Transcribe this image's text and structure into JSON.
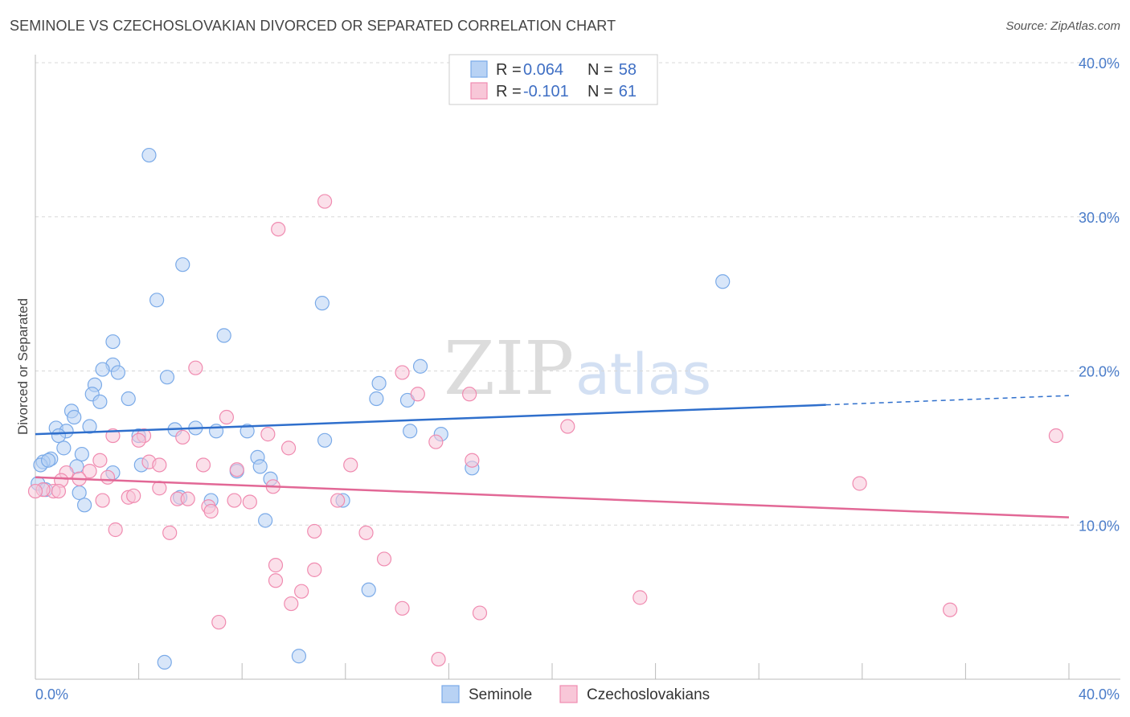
{
  "title": "SEMINOLE VS CZECHOSLOVAKIAN DIVORCED OR SEPARATED CORRELATION CHART",
  "source": "Source: ZipAtlas.com",
  "watermark": {
    "zip": "ZIP",
    "atlas": "atlas"
  },
  "chart_data": {
    "type": "scatter",
    "ylabel": "Divorced or Separated",
    "xlim": [
      0,
      40
    ],
    "ylim": [
      0,
      40
    ],
    "x_tick_labels": [
      {
        "value": 0,
        "label": "0.0%"
      },
      {
        "value": 40,
        "label": "40.0%"
      }
    ],
    "y_tick_labels": [
      {
        "value": 10,
        "label": "10.0%"
      },
      {
        "value": 20,
        "label": "20.0%"
      },
      {
        "value": 30,
        "label": "30.0%"
      },
      {
        "value": 40,
        "label": "40.0%"
      }
    ],
    "grid": "horizontal-dashed",
    "legend": {
      "placement": "top-center",
      "entries": [
        {
          "r_label": "R =",
          "r": "0.064",
          "n_label": "N =",
          "n": "58"
        },
        {
          "r_label": "R =",
          "r": "-0.101",
          "n_label": "N =",
          "n": "61"
        }
      ]
    },
    "series": [
      {
        "name": "Seminole",
        "color": "#7aaae8",
        "fill": "#b8d2f4",
        "line_color": "#2f6fcc",
        "trend": {
          "x": [
            0,
            30.6
          ],
          "y": [
            15.9,
            17.8
          ],
          "dashed_to": [
            40,
            18.4
          ]
        },
        "points": [
          [
            4.4,
            34.0
          ],
          [
            5.7,
            26.9
          ],
          [
            4.7,
            24.6
          ],
          [
            11.1,
            24.4
          ],
          [
            26.6,
            25.8
          ],
          [
            7.3,
            22.3
          ],
          [
            3.0,
            21.9
          ],
          [
            3.0,
            20.4
          ],
          [
            2.6,
            20.1
          ],
          [
            3.2,
            19.9
          ],
          [
            5.1,
            19.6
          ],
          [
            13.3,
            19.2
          ],
          [
            14.9,
            20.3
          ],
          [
            2.3,
            19.1
          ],
          [
            2.2,
            18.5
          ],
          [
            2.5,
            18.0
          ],
          [
            3.6,
            18.2
          ],
          [
            13.2,
            18.2
          ],
          [
            14.4,
            18.1
          ],
          [
            1.4,
            17.4
          ],
          [
            1.5,
            17.0
          ],
          [
            2.1,
            16.4
          ],
          [
            0.8,
            16.3
          ],
          [
            1.2,
            16.1
          ],
          [
            0.9,
            15.8
          ],
          [
            4.0,
            15.8
          ],
          [
            5.4,
            16.2
          ],
          [
            6.2,
            16.3
          ],
          [
            7.0,
            16.1
          ],
          [
            8.2,
            16.1
          ],
          [
            14.5,
            16.1
          ],
          [
            15.7,
            15.9
          ],
          [
            11.2,
            15.5
          ],
          [
            1.1,
            15.0
          ],
          [
            1.8,
            14.6
          ],
          [
            0.6,
            14.3
          ],
          [
            0.3,
            14.1
          ],
          [
            0.2,
            13.9
          ],
          [
            0.5,
            14.2
          ],
          [
            8.6,
            14.4
          ],
          [
            1.6,
            13.8
          ],
          [
            4.1,
            13.9
          ],
          [
            7.8,
            13.5
          ],
          [
            8.7,
            13.8
          ],
          [
            3.0,
            13.4
          ],
          [
            16.9,
            13.7
          ],
          [
            9.1,
            13.0
          ],
          [
            1.7,
            12.1
          ],
          [
            5.6,
            11.8
          ],
          [
            6.8,
            11.6
          ],
          [
            11.9,
            11.6
          ],
          [
            1.9,
            11.3
          ],
          [
            8.9,
            10.3
          ],
          [
            12.9,
            5.8
          ],
          [
            5.0,
            1.1
          ],
          [
            10.2,
            1.5
          ],
          [
            0.1,
            12.7
          ],
          [
            0.4,
            12.3
          ]
        ]
      },
      {
        "name": "Czechoslovakians",
        "color": "#f08bb0",
        "fill": "#f8c7d8",
        "line_color": "#e26896",
        "trend": {
          "x": [
            0,
            40
          ],
          "y": [
            13.1,
            10.5
          ]
        },
        "points": [
          [
            11.2,
            31.0
          ],
          [
            9.4,
            29.2
          ],
          [
            6.2,
            20.2
          ],
          [
            14.2,
            19.9
          ],
          [
            14.8,
            18.5
          ],
          [
            16.8,
            18.5
          ],
          [
            7.4,
            17.0
          ],
          [
            20.6,
            16.4
          ],
          [
            39.5,
            15.8
          ],
          [
            3.0,
            15.8
          ],
          [
            5.7,
            15.7
          ],
          [
            4.2,
            15.8
          ],
          [
            9.0,
            15.9
          ],
          [
            4.0,
            15.5
          ],
          [
            15.5,
            15.4
          ],
          [
            9.8,
            15.0
          ],
          [
            2.5,
            14.2
          ],
          [
            4.4,
            14.1
          ],
          [
            4.8,
            13.9
          ],
          [
            6.5,
            13.9
          ],
          [
            12.2,
            13.9
          ],
          [
            16.9,
            14.2
          ],
          [
            7.8,
            13.6
          ],
          [
            2.1,
            13.5
          ],
          [
            1.2,
            13.4
          ],
          [
            1.7,
            13.0
          ],
          [
            2.8,
            13.1
          ],
          [
            1.0,
            12.9
          ],
          [
            0.7,
            12.2
          ],
          [
            0.3,
            12.3
          ],
          [
            0.9,
            12.2
          ],
          [
            9.2,
            12.5
          ],
          [
            4.8,
            12.4
          ],
          [
            3.6,
            11.8
          ],
          [
            3.8,
            11.9
          ],
          [
            5.5,
            11.7
          ],
          [
            5.9,
            11.7
          ],
          [
            7.7,
            11.6
          ],
          [
            8.3,
            11.5
          ],
          [
            11.7,
            11.6
          ],
          [
            2.6,
            11.6
          ],
          [
            6.7,
            11.2
          ],
          [
            6.8,
            10.9
          ],
          [
            31.9,
            12.7
          ],
          [
            3.1,
            9.7
          ],
          [
            5.2,
            9.5
          ],
          [
            10.8,
            9.6
          ],
          [
            12.8,
            9.5
          ],
          [
            9.3,
            7.4
          ],
          [
            13.5,
            7.8
          ],
          [
            9.3,
            6.4
          ],
          [
            10.8,
            7.1
          ],
          [
            10.3,
            5.7
          ],
          [
            9.9,
            4.9
          ],
          [
            14.2,
            4.6
          ],
          [
            17.2,
            4.3
          ],
          [
            23.4,
            5.3
          ],
          [
            35.4,
            4.5
          ],
          [
            7.1,
            3.7
          ],
          [
            15.6,
            1.3
          ],
          [
            0.0,
            12.2
          ]
        ]
      }
    ]
  }
}
